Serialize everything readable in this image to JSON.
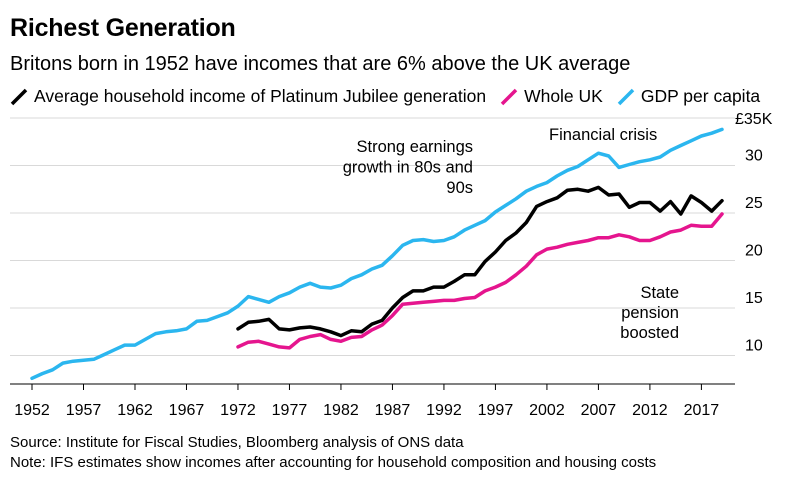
{
  "title": "Richest Generation",
  "subtitle": "Britons born in 1952 have incomes that are 6% above the UK average",
  "source": "Source: Institute for Fiscal Studies, Bloomberg analysis of ONS data",
  "note": "Note: IFS estimates show incomes after accounting for household composition and housing costs",
  "colors": {
    "black": "#000000",
    "pink": "#e5158e",
    "blue": "#2bb6ef"
  },
  "chart_data": {
    "type": "line",
    "title": "Richest Generation",
    "subtitle": "Britons born in 1952 have incomes that are 6% above the UK average",
    "xlabel": "",
    "ylabel": "",
    "xlim": [
      1952,
      2019
    ],
    "ylim": [
      7,
      35
    ],
    "y_axis_position": "right",
    "y_unit_label": "£35K",
    "x_ticks": [
      1952,
      1957,
      1962,
      1967,
      1972,
      1977,
      1982,
      1987,
      1992,
      1997,
      2002,
      2007,
      2012,
      2017
    ],
    "y_ticks": [
      10,
      15,
      20,
      25,
      30
    ],
    "y_tick_labels": [
      "10",
      "15",
      "20",
      "25",
      "30"
    ],
    "grid": "horizontal",
    "legend_position": "top-left",
    "annotations": [
      {
        "lines": [
          "Strong earnings",
          "growth in 80s and",
          "90s"
        ]
      },
      {
        "lines": [
          "Financial crisis"
        ]
      },
      {
        "lines": [
          "State",
          "pension",
          "boosted"
        ]
      }
    ],
    "series": [
      {
        "name": "Average household income of Platinum Jubilee generation",
        "color": "#000000",
        "x": [
          1972,
          1973,
          1974,
          1975,
          1976,
          1977,
          1978,
          1979,
          1980,
          1981,
          1982,
          1983,
          1984,
          1985,
          1986,
          1987,
          1988,
          1989,
          1990,
          1991,
          1992,
          1993,
          1994,
          1995,
          1996,
          1997,
          1998,
          1999,
          2000,
          2001,
          2002,
          2003,
          2004,
          2005,
          2006,
          2007,
          2008,
          2009,
          2010,
          2011,
          2012,
          2013,
          2014,
          2015,
          2016,
          2017,
          2018,
          2019
        ],
        "y": [
          12.8,
          13.5,
          13.6,
          13.8,
          12.8,
          12.7,
          12.9,
          13.0,
          12.8,
          12.5,
          12.1,
          12.6,
          12.5,
          13.3,
          13.7,
          15.0,
          16.1,
          16.8,
          16.8,
          17.2,
          17.2,
          17.8,
          18.5,
          18.5,
          19.9,
          20.9,
          22.1,
          22.9,
          24.0,
          25.7,
          26.2,
          26.6,
          27.4,
          27.5,
          27.3,
          27.7,
          26.9,
          27.0,
          25.6,
          26.1,
          26.1,
          25.2,
          26.2,
          24.9,
          26.8,
          26.1,
          25.2,
          26.3
        ]
      },
      {
        "name": "Whole UK",
        "color": "#e5158e",
        "x": [
          1972,
          1973,
          1974,
          1975,
          1976,
          1977,
          1978,
          1979,
          1980,
          1981,
          1982,
          1983,
          1984,
          1985,
          1986,
          1987,
          1988,
          1989,
          1990,
          1991,
          1992,
          1993,
          1994,
          1995,
          1996,
          1997,
          1998,
          1999,
          2000,
          2001,
          2002,
          2003,
          2004,
          2005,
          2006,
          2007,
          2008,
          2009,
          2010,
          2011,
          2012,
          2013,
          2014,
          2015,
          2016,
          2017,
          2018,
          2019
        ],
        "y": [
          10.9,
          11.4,
          11.5,
          11.2,
          10.9,
          10.8,
          11.7,
          12.0,
          12.2,
          11.7,
          11.5,
          11.9,
          12.0,
          12.7,
          13.2,
          14.2,
          15.4,
          15.5,
          15.6,
          15.7,
          15.8,
          15.8,
          16.0,
          16.1,
          16.8,
          17.2,
          17.7,
          18.5,
          19.4,
          20.6,
          21.2,
          21.4,
          21.7,
          21.9,
          22.1,
          22.4,
          22.4,
          22.7,
          22.5,
          22.1,
          22.1,
          22.5,
          23.0,
          23.2,
          23.7,
          23.6,
          23.6,
          24.9
        ]
      },
      {
        "name": "GDP per capita",
        "color": "#2bb6ef",
        "x": [
          1952,
          1953,
          1954,
          1955,
          1956,
          1957,
          1958,
          1959,
          1960,
          1961,
          1962,
          1963,
          1964,
          1965,
          1966,
          1967,
          1968,
          1969,
          1970,
          1971,
          1972,
          1973,
          1974,
          1975,
          1976,
          1977,
          1978,
          1979,
          1980,
          1981,
          1982,
          1983,
          1984,
          1985,
          1986,
          1987,
          1988,
          1989,
          1990,
          1991,
          1992,
          1993,
          1994,
          1995,
          1996,
          1997,
          1998,
          1999,
          2000,
          2001,
          2002,
          2003,
          2004,
          2005,
          2006,
          2007,
          2008,
          2009,
          2010,
          2011,
          2012,
          2013,
          2014,
          2015,
          2016,
          2017,
          2018,
          2019
        ],
        "y": [
          7.6,
          8.1,
          8.5,
          9.2,
          9.4,
          9.5,
          9.6,
          10.1,
          10.6,
          11.1,
          11.1,
          11.7,
          12.3,
          12.5,
          12.6,
          12.8,
          13.6,
          13.7,
          14.1,
          14.5,
          15.2,
          16.2,
          15.9,
          15.6,
          16.2,
          16.6,
          17.2,
          17.6,
          17.2,
          17.1,
          17.4,
          18.1,
          18.5,
          19.1,
          19.5,
          20.5,
          21.6,
          22.1,
          22.2,
          22.0,
          22.1,
          22.5,
          23.2,
          23.7,
          24.2,
          25.1,
          25.8,
          26.5,
          27.3,
          27.8,
          28.2,
          28.9,
          29.5,
          29.9,
          30.6,
          31.3,
          31.0,
          29.8,
          30.1,
          30.4,
          30.6,
          30.9,
          31.6,
          32.1,
          32.6,
          33.1,
          33.4,
          33.8
        ]
      }
    ]
  }
}
